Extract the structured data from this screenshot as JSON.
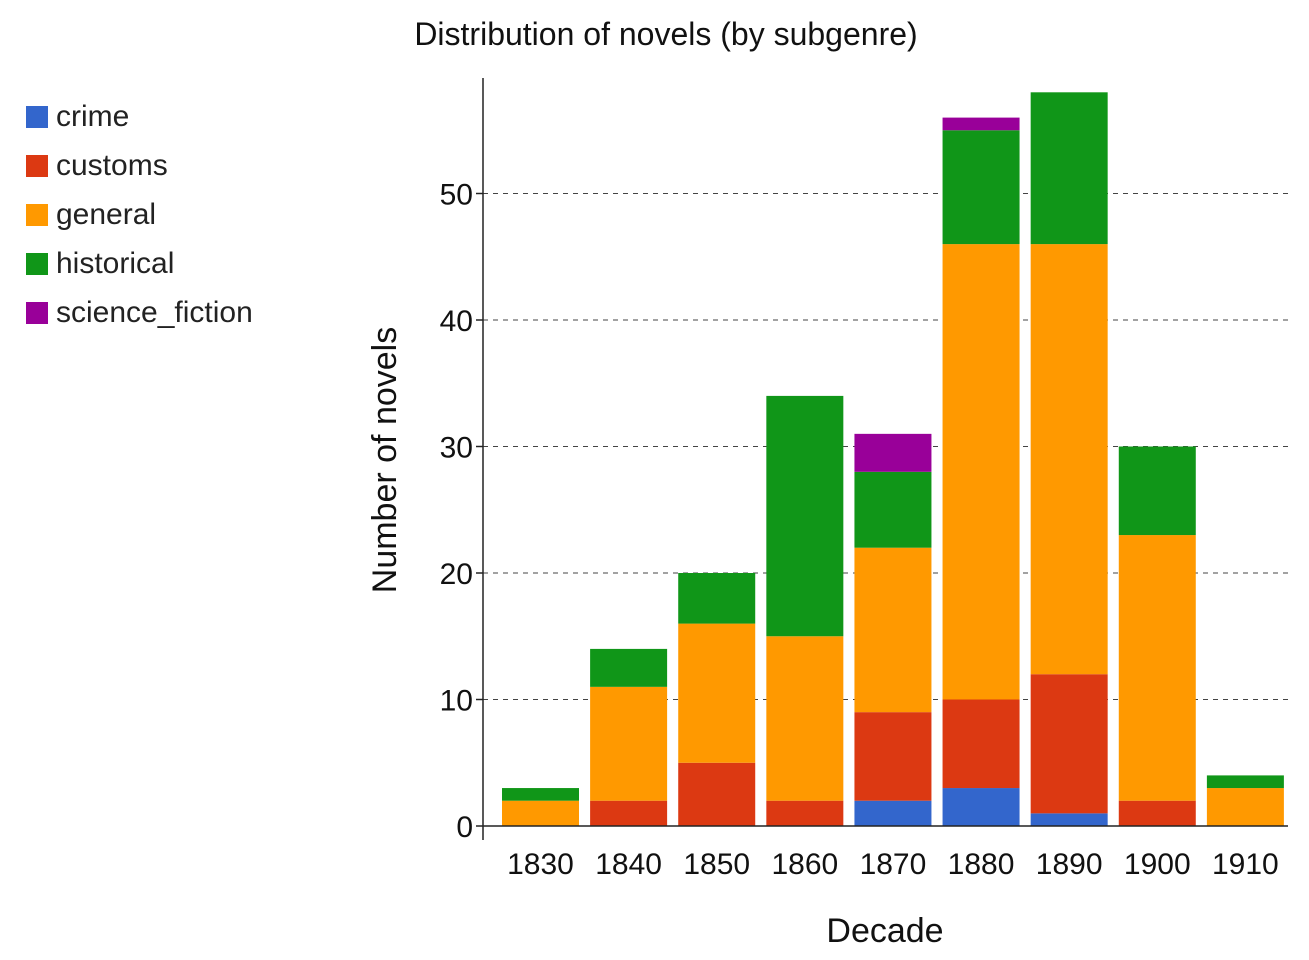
{
  "chart_data": {
    "type": "bar",
    "stacked": true,
    "title": "Distribution of novels (by subgenre)",
    "xlabel": "Decade",
    "ylabel": "Number of novels",
    "ylim": [
      0,
      59
    ],
    "yticks": [
      0,
      10,
      20,
      30,
      40,
      50
    ],
    "grid": true,
    "legend_position": "top-left",
    "categories": [
      "1830",
      "1840",
      "1850",
      "1860",
      "1870",
      "1880",
      "1890",
      "1900",
      "1910"
    ],
    "series": [
      {
        "name": "crime",
        "color": "#3366cc",
        "values": [
          0,
          0,
          0,
          0,
          2,
          3,
          1,
          0,
          0
        ]
      },
      {
        "name": "customs",
        "color": "#dc3912",
        "values": [
          0,
          2,
          5,
          2,
          7,
          7,
          11,
          2,
          0
        ]
      },
      {
        "name": "general",
        "color": "#ff9900",
        "values": [
          2,
          9,
          11,
          13,
          13,
          36,
          34,
          21,
          3
        ]
      },
      {
        "name": "historical",
        "color": "#109618",
        "values": [
          1,
          3,
          4,
          19,
          6,
          9,
          12,
          7,
          1
        ]
      },
      {
        "name": "science_fiction",
        "color": "#990099",
        "values": [
          0,
          0,
          0,
          0,
          3,
          1,
          0,
          0,
          0
        ]
      }
    ]
  }
}
